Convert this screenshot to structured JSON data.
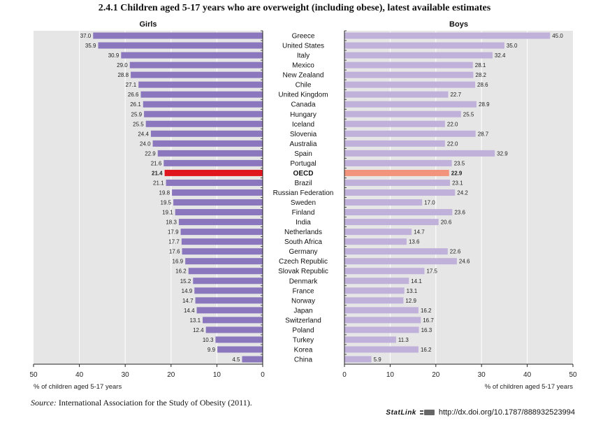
{
  "title": "2.4.1 Children aged 5-17 years who are overweight (including obese), latest available estimates",
  "source": {
    "label": "Source:",
    "text": "International Association for the Study of Obesity (2011)."
  },
  "statlink": {
    "brand": "StatLink",
    "url": "http://dx.doi.org/10.1787/888932523994"
  },
  "colors": {
    "bar": "#8b77bd",
    "oecd_girls": "#e0161e",
    "boys_bar": "#c0b1da",
    "oecd_boys": "#f2937b",
    "panel_bg": "#e6e6e6",
    "grid": "#ffffff"
  },
  "chart_data": [
    {
      "type": "bar",
      "orientation": "horizontal",
      "direction": "right-to-left",
      "title": "Girls",
      "xlabel": "% of children aged 5-17 years",
      "xlim": [
        0,
        50
      ],
      "xticks": [
        "50",
        "40",
        "30",
        "20",
        "10",
        "0"
      ],
      "categories": [
        "Greece",
        "United States",
        "Italy",
        "Mexico",
        "New Zealand",
        "Chile",
        "United Kingdom",
        "Canada",
        "Hungary",
        "Iceland",
        "Slovenia",
        "Australia",
        "Spain",
        "Portugal",
        "OECD",
        "Brazil",
        "Russian Federation",
        "Sweden",
        "Finland",
        "India",
        "Netherlands",
        "South Africa",
        "Germany",
        "Czech Republic",
        "Slovak Republic",
        "Denmark",
        "France",
        "Norway",
        "Japan",
        "Switzerland",
        "Poland",
        "Turkey",
        "Korea",
        "China"
      ],
      "values": [
        37.0,
        35.9,
        30.9,
        29.0,
        28.8,
        27.1,
        26.6,
        26.1,
        25.9,
        25.5,
        24.4,
        24.0,
        22.9,
        21.6,
        21.4,
        21.1,
        19.8,
        19.5,
        19.1,
        18.3,
        17.9,
        17.7,
        17.6,
        16.9,
        16.2,
        15.2,
        14.9,
        14.7,
        14.4,
        13.1,
        12.4,
        10.3,
        9.9,
        4.5
      ],
      "labels": [
        "37.0",
        "35.9",
        "30.9",
        "29.0",
        "28.8",
        "27.1",
        "26.6",
        "26.1",
        "25.9",
        "25.5",
        "24.4",
        "24.0",
        "22.9",
        "21.6",
        "21.4",
        "21.1",
        "19.8",
        "19.5",
        "19.1",
        "18.3",
        "17.9",
        "17.7",
        "17.6",
        "16.9",
        "16.2",
        "15.2",
        "14.9",
        "14.7",
        "14.4",
        "13.1",
        "12.4",
        "10.3",
        "9.9",
        "4.5"
      ],
      "highlight": "OECD",
      "grid": true
    },
    {
      "type": "bar",
      "orientation": "horizontal",
      "title": "Boys",
      "xlabel": "% of children aged 5-17 years",
      "xlim": [
        0,
        50
      ],
      "xticks": [
        "0",
        "10",
        "20",
        "30",
        "40",
        "50"
      ],
      "categories": [
        "Greece",
        "United States",
        "Italy",
        "Mexico",
        "New Zealand",
        "Chile",
        "United Kingdom",
        "Canada",
        "Hungary",
        "Iceland",
        "Slovenia",
        "Australia",
        "Spain",
        "Portugal",
        "OECD",
        "Brazil",
        "Russian Federation",
        "Sweden",
        "Finland",
        "India",
        "Netherlands",
        "South Africa",
        "Germany",
        "Czech Republic",
        "Slovak Republic",
        "Denmark",
        "France",
        "Norway",
        "Japan",
        "Switzerland",
        "Poland",
        "Turkey",
        "Korea",
        "China"
      ],
      "values": [
        45.0,
        35.0,
        32.4,
        28.1,
        28.2,
        28.6,
        22.7,
        28.9,
        25.5,
        22.0,
        28.7,
        22.0,
        32.9,
        23.5,
        22.9,
        23.1,
        24.2,
        17.0,
        23.6,
        20.6,
        14.7,
        13.6,
        22.6,
        24.6,
        17.5,
        14.1,
        13.1,
        12.9,
        16.2,
        16.7,
        16.3,
        11.3,
        16.2,
        5.9
      ],
      "labels": [
        "45.0",
        "35.0",
        "32.4",
        "28.1",
        "28.2",
        "28.6",
        "22.7",
        "28.9",
        "25.5",
        "22.0",
        "28.7",
        "22.0",
        "32.9",
        "23.5",
        "22.9",
        "23.1",
        "24.2",
        "17.0",
        "23.6",
        "20.6",
        "14.7",
        "13.6",
        "22.6",
        "24.6",
        "17.5",
        "14.1",
        "13.1",
        "12.9",
        "16.2",
        "16.7",
        "16.3",
        "11.3",
        "16.2",
        "5.9"
      ],
      "highlight": "OECD",
      "grid": true
    }
  ]
}
